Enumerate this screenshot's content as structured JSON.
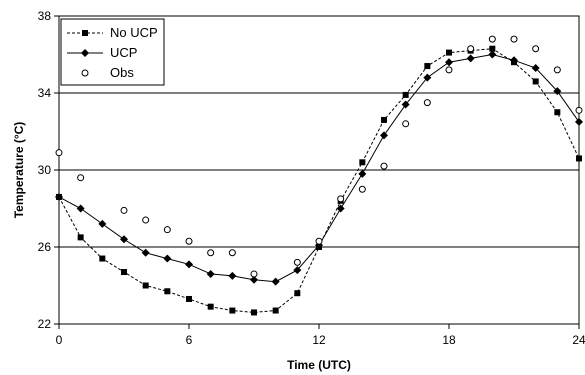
{
  "chart_data": {
    "type": "line",
    "title": "",
    "xlabel": "Time (UTC)",
    "ylabel": "Temperature (°C)",
    "xlim": [
      0,
      24
    ],
    "ylim": [
      22,
      38
    ],
    "xticks": [
      0,
      6,
      12,
      18,
      24
    ],
    "yticks": [
      22,
      26,
      30,
      34,
      38
    ],
    "grid": "horizontal",
    "legend_position": "top-left",
    "x": [
      0,
      1,
      2,
      3,
      4,
      5,
      6,
      7,
      8,
      9,
      10,
      11,
      12,
      13,
      14,
      15,
      16,
      17,
      18,
      19,
      20,
      21,
      22,
      23,
      24
    ],
    "series": [
      {
        "name": "No UCP",
        "line_style": "dashed",
        "marker": "square",
        "color": "#000000",
        "values": [
          28.6,
          26.5,
          25.4,
          24.7,
          24.0,
          23.7,
          23.3,
          22.9,
          22.7,
          22.6,
          22.7,
          23.6,
          26.0,
          28.4,
          30.4,
          32.6,
          33.9,
          35.4,
          36.1,
          36.2,
          36.3,
          35.6,
          34.6,
          33.0,
          30.6
        ]
      },
      {
        "name": "UCP",
        "line_style": "solid",
        "marker": "diamond",
        "color": "#000000",
        "values": [
          28.6,
          28.0,
          27.2,
          26.4,
          25.7,
          25.4,
          25.1,
          24.6,
          24.5,
          24.3,
          24.2,
          24.8,
          26.1,
          28.0,
          29.8,
          31.8,
          33.4,
          34.8,
          35.6,
          35.8,
          36.0,
          35.7,
          35.3,
          34.1,
          32.5
        ]
      },
      {
        "name": "Obs",
        "line_style": "none",
        "marker": "open-circle",
        "color": "#000000",
        "values": [
          30.9,
          29.6,
          null,
          27.9,
          27.4,
          26.9,
          26.3,
          25.7,
          25.7,
          24.6,
          null,
          25.2,
          26.3,
          28.5,
          29.0,
          30.2,
          32.4,
          33.5,
          35.2,
          36.3,
          36.8,
          36.8,
          36.3,
          35.2,
          33.1
        ]
      }
    ]
  }
}
